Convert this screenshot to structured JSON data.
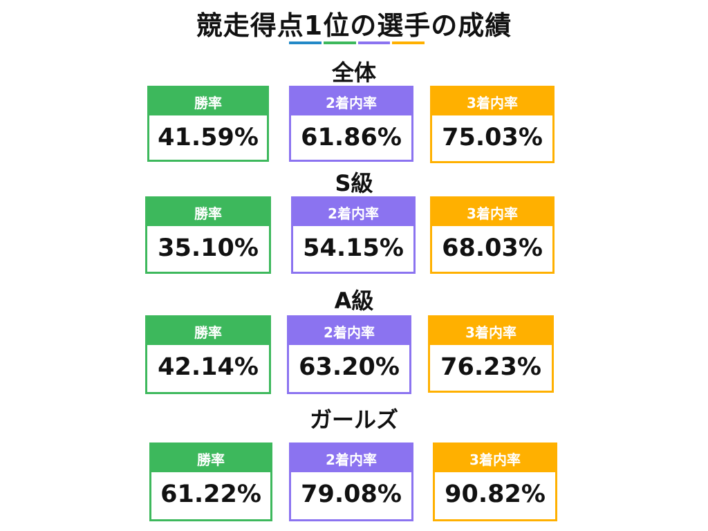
{
  "title": "競走得点1位の選手の成績",
  "colors": {
    "win": "#3db85c",
    "top2": "#8b73f0",
    "top3": "#ffb000",
    "accent_blue": "#2389c7"
  },
  "sections": [
    {
      "label": "全体",
      "stats": [
        {
          "label": "勝率",
          "value": "41.59%"
        },
        {
          "label": "2着内率",
          "value": "61.86%"
        },
        {
          "label": "3着内率",
          "value": "75.03%"
        }
      ]
    },
    {
      "label": "S級",
      "stats": [
        {
          "label": "勝率",
          "value": "35.10%"
        },
        {
          "label": "2着内率",
          "value": "54.15%"
        },
        {
          "label": "3着内率",
          "value": "68.03%"
        }
      ]
    },
    {
      "label": "A級",
      "stats": [
        {
          "label": "勝率",
          "value": "42.14%"
        },
        {
          "label": "2着内率",
          "value": "63.20%"
        },
        {
          "label": "3着内率",
          "value": "76.23%"
        }
      ]
    },
    {
      "label": "ガールズ",
      "stats": [
        {
          "label": "勝率",
          "value": "61.22%"
        },
        {
          "label": "2着内率",
          "value": "79.08%"
        },
        {
          "label": "3着内率",
          "value": "90.82%"
        }
      ]
    }
  ]
}
